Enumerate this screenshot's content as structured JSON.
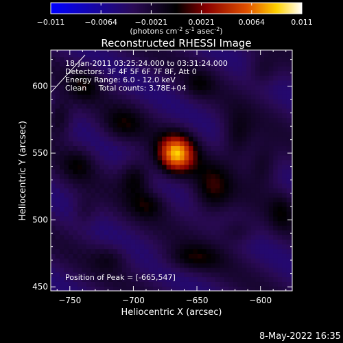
{
  "colorbar": {
    "ticks": [
      "-0.011",
      "-0.0064",
      "-0.0021",
      "0.0021",
      "0.0064",
      "0.011"
    ],
    "unit_prefix": "(photons cm",
    "unit_sup1": "-2",
    "unit_mid": " s",
    "unit_sup2": "-1",
    "unit_mid2": " asec",
    "unit_sup3": "-2",
    "unit_suffix": ")",
    "colors": [
      "#0000ff",
      "#2a0a55",
      "#000000",
      "#8a0000",
      "#e05000",
      "#ffd200",
      "#ffffff"
    ]
  },
  "chart_data": {
    "type": "heatmap",
    "title": "Reconstructed RHESSI Image",
    "xlabel": "Heliocentric X (arcsec)",
    "ylabel": "Heliocentric Y (arcsec)",
    "xlim": [
      -765,
      -575
    ],
    "ylim": [
      447,
      627
    ],
    "xticks": [
      -750,
      -700,
      -650,
      -600
    ],
    "xtick_labels": [
      "−750",
      "−700",
      "−650",
      "−600"
    ],
    "yticks": [
      450,
      500,
      550,
      600
    ],
    "ytick_labels": [
      "450",
      "500",
      "550",
      "600"
    ],
    "vmin": -0.011,
    "vmax": 0.011,
    "peak": [
      -665,
      547
    ],
    "annotations": [
      "18-Jan-2011 03:25:24.000 to 03:31:24.000",
      "Detectors: 3F 4F 5F 6F 7F 8F, Att 0",
      "Energy Range: 6.0 - 12.0 keV",
      "Clean     Total counts: 3.78E+04"
    ],
    "peak_label": "Position of Peak = [-665,547]"
  },
  "footer": {
    "timestamp": "8-May-2022 16:35"
  }
}
